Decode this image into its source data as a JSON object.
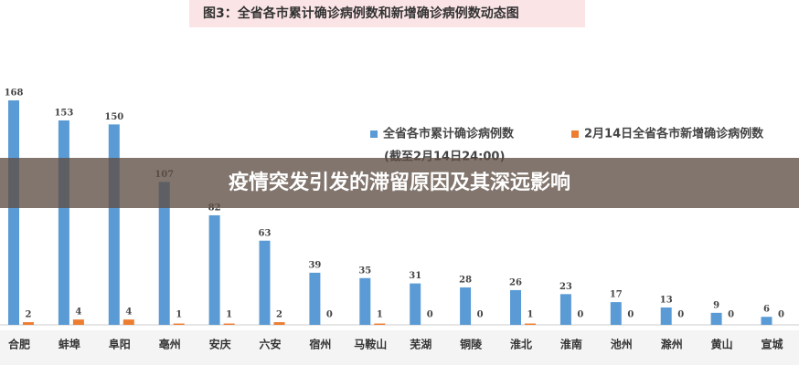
{
  "chart_data": {
    "type": "bar",
    "title": "图3：全省各市累计确诊病例数和新增确诊病例数动态图",
    "annotation": "(截至2月14日24:00)",
    "categories": [
      "合肥",
      "蚌埠",
      "阜阳",
      "亳州",
      "安庆",
      "六安",
      "宿州",
      "马鞍山",
      "芜湖",
      "铜陵",
      "淮北",
      "淮南",
      "池州",
      "滁州",
      "黄山",
      "宣城"
    ],
    "series": [
      {
        "name": "全省各市累计确诊病例数",
        "color": "#5b9bd5",
        "values": [
          168,
          153,
          150,
          107,
          82,
          63,
          39,
          35,
          31,
          28,
          26,
          23,
          17,
          13,
          9,
          6
        ]
      },
      {
        "name": "2月14日全省各市新增确诊病例数",
        "color": "#ed7d31",
        "values": [
          2,
          4,
          4,
          1,
          1,
          2,
          0,
          1,
          0,
          0,
          1,
          0,
          0,
          0,
          0,
          0
        ]
      }
    ],
    "legend": "upper right"
  },
  "overlay_title": "疫情突发引发的滞留原因及其深远影响"
}
